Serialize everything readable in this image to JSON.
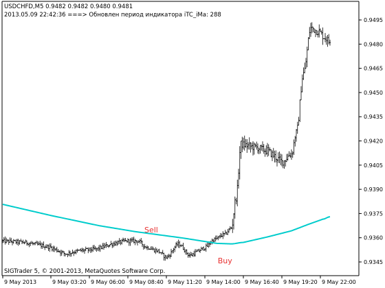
{
  "header": {
    "symbol_line": "USDCHFD,M5  0.9482 0.9482 0.9480 0.9481",
    "status_line": "2013.05.09 22:42:36 ===>  Обновлен период индикатора iTC_iMa: 288"
  },
  "footer": {
    "copyright": "SIGTrader 5, © 2001-2013, MetaQuotes Software Corp."
  },
  "colors": {
    "background": "#ffffff",
    "candle": "#000000",
    "ma_line": "#00cccc",
    "signal": "#e83030",
    "axis": "#000000"
  },
  "chart_data": {
    "type": "candlestick",
    "symbol": "USDCHFD",
    "timeframe": "M5",
    "y_ticks": [
      0.9495,
      0.948,
      0.9465,
      0.945,
      0.9435,
      0.942,
      0.9405,
      0.939,
      0.9375,
      0.936,
      0.9345
    ],
    "y_tick_labels": [
      "0.9495",
      "0.9480",
      "0.9465",
      "0.9450",
      "0.9435",
      "0.9420",
      "0.9405",
      "0.9390",
      "0.9375",
      "0.9360",
      "0.9345"
    ],
    "ylim": [
      0.93365,
      0.95065
    ],
    "x_tick_labels": [
      "9 May 2013",
      "9 May 03:20",
      "9 May 06:00",
      "9 May 08:40",
      "9 May 11:20",
      "9 May 14:00",
      "9 May 16:40",
      "9 May 19:20",
      "9 May 22:00"
    ],
    "x_tick_index": [
      0,
      40,
      72,
      104,
      136,
      168,
      200,
      232,
      264
    ],
    "bars_count": 273,
    "price_knots": [
      [
        0,
        0.9358
      ],
      [
        20,
        0.9357
      ],
      [
        40,
        0.9354
      ],
      [
        52,
        0.935
      ],
      [
        64,
        0.9352
      ],
      [
        78,
        0.9353
      ],
      [
        90,
        0.9356
      ],
      [
        102,
        0.9358
      ],
      [
        112,
        0.9358
      ],
      [
        120,
        0.9354
      ],
      [
        128,
        0.9352
      ],
      [
        136,
        0.9348
      ],
      [
        146,
        0.9356
      ],
      [
        156,
        0.9349
      ],
      [
        168,
        0.9354
      ],
      [
        176,
        0.9359
      ],
      [
        184,
        0.9362
      ],
      [
        190,
        0.9366
      ],
      [
        194,
        0.9385
      ],
      [
        198,
        0.9418
      ],
      [
        210,
        0.9416
      ],
      [
        220,
        0.9414
      ],
      [
        232,
        0.9407
      ],
      [
        240,
        0.9412
      ],
      [
        244,
        0.9425
      ],
      [
        250,
        0.9462
      ],
      [
        256,
        0.949
      ],
      [
        262,
        0.9488
      ],
      [
        268,
        0.9484
      ],
      [
        272,
        0.9481
      ]
    ],
    "ma_knots": [
      [
        0,
        0.93807
      ],
      [
        40,
        0.93738
      ],
      [
        80,
        0.93675
      ],
      [
        110,
        0.93638
      ],
      [
        150,
        0.93598
      ],
      [
        178,
        0.93565
      ],
      [
        190,
        0.93562
      ],
      [
        200,
        0.93571
      ],
      [
        220,
        0.93605
      ],
      [
        240,
        0.93643
      ],
      [
        254,
        0.93683
      ],
      [
        266,
        0.93715
      ],
      [
        272,
        0.9373
      ]
    ],
    "signals": [
      {
        "label": "Sell",
        "index": 120,
        "price": 0.93649
      },
      {
        "label": "Buy",
        "index": 181,
        "price": 0.93459
      }
    ],
    "last_ohlc": {
      "open": 0.9482,
      "high": 0.9482,
      "low": 0.948,
      "close": 0.9481
    }
  }
}
